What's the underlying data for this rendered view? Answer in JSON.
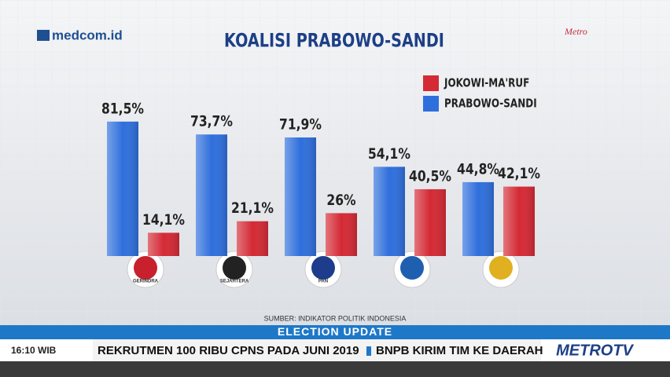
{
  "chart_data": {
    "type": "bar",
    "title": "KOALISI PRABOWO-SANDI",
    "categories": [
      "GERINDRA",
      "SEJAHTERA",
      "PAN",
      null,
      null
    ],
    "series": [
      {
        "name": "JOKOWI-MA'RUF",
        "color": "#d42a35",
        "values": [
          14.1,
          21.1,
          26,
          40.5,
          42.1
        ],
        "value_labels": [
          "14,1%",
          "21,1%",
          "26%",
          "40,5%",
          "42,1%"
        ]
      },
      {
        "name": "PRABOWO-SANDI",
        "color": "#2f6fdc",
        "values": [
          81.5,
          73.7,
          71.9,
          54.1,
          44.8
        ],
        "value_labels": [
          "81,5%",
          "73,7%",
          "71,9%",
          "54,1%",
          "44,8%"
        ]
      }
    ],
    "source": "SUMBER: INDIKATOR POLITIK INDONESIA"
  },
  "broadcast": {
    "brand": "medcom.id",
    "watermark": "Metro",
    "banner": "ELECTION UPDATE",
    "time": "16:10 WIB",
    "ticker": [
      "REKRUTMEN 100 RIBU CPNS PADA JUNI 2019",
      "BNPB KIRIM TIM KE DAERAH"
    ],
    "network": "METROTV"
  }
}
